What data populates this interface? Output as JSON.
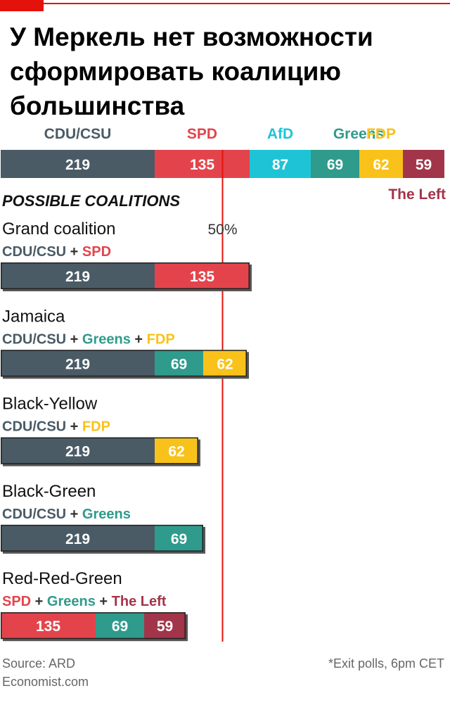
{
  "title": "У Меркель нет возможности сформировать коалицию большинства",
  "footer": {
    "source": "Source: ARD",
    "site": "Economist.com",
    "note": "*Exit polls, 6pm CET"
  },
  "colors": {
    "CDU/CSU": "#4a5b66",
    "SPD": "#e3444c",
    "AfD": "#1ec4d6",
    "Greens": "#2f9b8c",
    "FDP": "#f8c21a",
    "The Left": "#a3354a",
    "accent": "#e3120b"
  },
  "chart_data": {
    "type": "bar",
    "orientation": "horizontal-stacked",
    "units": "seats",
    "total_bar": {
      "parties": [
        {
          "party": "CDU/CSU",
          "seats": 219
        },
        {
          "party": "SPD",
          "seats": 135
        },
        {
          "party": "AfD",
          "seats": 87
        },
        {
          "party": "Greens",
          "seats": 69
        },
        {
          "party": "FDP",
          "seats": 62
        },
        {
          "party": "The Left",
          "seats": 59
        }
      ]
    },
    "majority_line_label": "50%",
    "coalitions_heading": "POSSIBLE COALITIONS",
    "coalitions": [
      {
        "name": "Grand coalition",
        "parties": [
          {
            "party": "CDU/CSU",
            "seats": 219
          },
          {
            "party": "SPD",
            "seats": 135
          }
        ]
      },
      {
        "name": "Jamaica",
        "parties": [
          {
            "party": "CDU/CSU",
            "seats": 219
          },
          {
            "party": "Greens",
            "seats": 69
          },
          {
            "party": "FDP",
            "seats": 62
          }
        ]
      },
      {
        "name": "Black-Yellow",
        "parties": [
          {
            "party": "CDU/CSU",
            "seats": 219
          },
          {
            "party": "FDP",
            "seats": 62
          }
        ]
      },
      {
        "name": "Black-Green",
        "parties": [
          {
            "party": "CDU/CSU",
            "seats": 219
          },
          {
            "party": "Greens",
            "seats": 69
          }
        ]
      },
      {
        "name": "Red-Red-Green",
        "parties": [
          {
            "party": "SPD",
            "seats": 135
          },
          {
            "party": "Greens",
            "seats": 69
          },
          {
            "party": "The Left",
            "seats": 59
          }
        ]
      }
    ]
  }
}
